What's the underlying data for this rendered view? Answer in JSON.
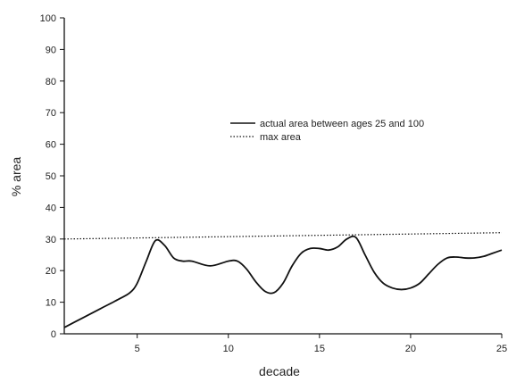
{
  "chart_data": {
    "type": "line",
    "title": "",
    "xlabel": "decade",
    "ylabel": "% area",
    "xlim": [
      1,
      25
    ],
    "ylim": [
      0,
      100
    ],
    "x_ticks": [
      5,
      10,
      15,
      20,
      25
    ],
    "y_ticks": [
      0,
      10,
      20,
      30,
      40,
      50,
      60,
      70,
      80,
      90,
      100
    ],
    "grid": false,
    "legend_position": "center-right",
    "series": [
      {
        "name": "actual area between ages 25 and 100",
        "style": "solid",
        "color": "#111111",
        "x": [
          1,
          2,
          3,
          4,
          4.6,
          5,
          5.5,
          6,
          6.5,
          7,
          7.5,
          8,
          9,
          10,
          10.5,
          11,
          11.5,
          12,
          12.5,
          13,
          13.5,
          14,
          14.5,
          15,
          15.5,
          16,
          16.5,
          17,
          17.5,
          18,
          18.5,
          19,
          19.5,
          20,
          20.5,
          21,
          21.5,
          22,
          22.5,
          23,
          23.5,
          24,
          24.5,
          25
        ],
        "y": [
          2,
          5,
          8,
          11,
          13,
          16,
          23,
          29.5,
          28,
          24,
          23,
          23,
          21.5,
          23,
          23,
          20.5,
          16.5,
          13.5,
          13,
          16,
          21.5,
          25.5,
          27,
          27,
          26.5,
          27.5,
          30,
          30.5,
          25,
          19.5,
          16,
          14.5,
          14,
          14.5,
          16,
          19,
          22,
          24,
          24.3,
          24,
          24,
          24.5,
          25.5,
          26.5
        ]
      },
      {
        "name": "max area",
        "style": "dotted",
        "color": "#111111",
        "x": [
          1,
          25
        ],
        "y": [
          30,
          32
        ]
      }
    ]
  }
}
